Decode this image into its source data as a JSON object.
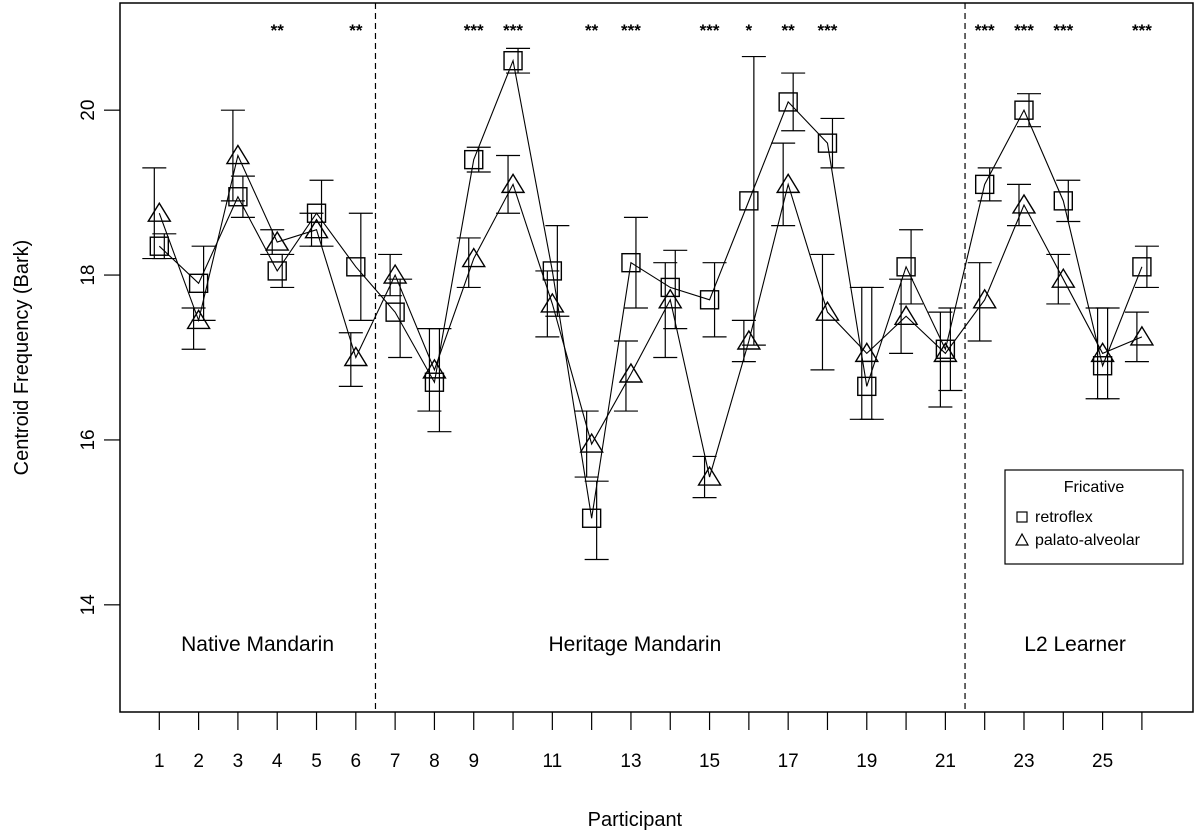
{
  "chart_data": {
    "type": "line",
    "xlabel": "Participant",
    "ylabel": "Centroid Frequency (Bark)",
    "xlim": [
      0,
      27.3
    ],
    "ylim": [
      12.7,
      21.3
    ],
    "x_ticks": [
      1,
      2,
      3,
      4,
      5,
      6,
      7,
      8,
      9,
      11,
      13,
      15,
      17,
      19,
      21,
      23,
      25
    ],
    "y_ticks": [
      14,
      16,
      18,
      20
    ],
    "x": [
      1,
      2,
      3,
      4,
      5,
      6,
      7,
      8,
      9,
      10,
      11,
      12,
      13,
      14,
      15,
      16,
      17,
      18,
      19,
      20,
      21,
      22,
      23,
      24,
      25,
      26
    ],
    "series": [
      {
        "name": "retroflex",
        "marker": "square",
        "values": [
          18.35,
          17.9,
          18.95,
          18.05,
          18.75,
          18.1,
          17.55,
          16.7,
          19.4,
          20.6,
          18.05,
          15.05,
          18.15,
          17.85,
          17.7,
          18.9,
          20.1,
          19.6,
          16.65,
          18.1,
          17.1,
          19.1,
          20.0,
          18.9,
          16.9,
          18.1
        ],
        "upper": [
          18.5,
          18.35,
          19.2,
          18.25,
          19.15,
          18.75,
          17.95,
          17.35,
          19.55,
          20.75,
          18.6,
          15.5,
          18.7,
          18.3,
          18.15,
          20.65,
          20.45,
          19.9,
          17.85,
          18.55,
          17.6,
          19.3,
          20.2,
          19.15,
          17.6,
          18.35
        ],
        "lower": [
          18.2,
          17.45,
          18.7,
          17.85,
          18.35,
          17.45,
          17.0,
          16.1,
          19.25,
          20.45,
          17.5,
          14.55,
          17.6,
          17.35,
          17.25,
          17.15,
          19.75,
          19.3,
          16.25,
          17.65,
          16.6,
          18.9,
          19.8,
          18.65,
          16.5,
          17.85
        ]
      },
      {
        "name": "palato-alveolar",
        "marker": "triangle",
        "values": [
          18.75,
          17.45,
          19.45,
          18.4,
          18.55,
          17.0,
          18.0,
          16.85,
          18.2,
          19.1,
          17.65,
          15.95,
          16.8,
          17.7,
          15.55,
          17.2,
          19.1,
          17.55,
          17.05,
          17.5,
          17.05,
          17.7,
          18.85,
          17.95,
          17.05,
          17.25
        ],
        "upper": [
          19.3,
          17.6,
          20.0,
          18.55,
          18.75,
          17.3,
          18.25,
          17.35,
          18.45,
          19.45,
          18.05,
          16.35,
          17.2,
          18.15,
          15.8,
          17.45,
          19.6,
          18.25,
          17.85,
          17.95,
          17.55,
          18.15,
          19.1,
          18.25,
          17.6,
          17.55
        ],
        "lower": [
          18.2,
          17.1,
          18.9,
          18.25,
          18.35,
          16.65,
          17.75,
          16.35,
          17.85,
          18.75,
          17.25,
          15.55,
          16.35,
          17.0,
          15.3,
          16.95,
          18.6,
          16.85,
          16.25,
          17.05,
          16.4,
          17.2,
          18.6,
          17.65,
          16.5,
          16.95
        ]
      }
    ],
    "significance": [
      {
        "x": 4,
        "label": "**"
      },
      {
        "x": 6,
        "label": "**"
      },
      {
        "x": 9,
        "label": "***"
      },
      {
        "x": 10,
        "label": "***"
      },
      {
        "x": 12,
        "label": "**"
      },
      {
        "x": 13,
        "label": "***"
      },
      {
        "x": 15,
        "label": "***"
      },
      {
        "x": 16,
        "label": "*"
      },
      {
        "x": 17,
        "label": "**"
      },
      {
        "x": 18,
        "label": "***"
      },
      {
        "x": 22,
        "label": "***"
      },
      {
        "x": 23,
        "label": "***"
      },
      {
        "x": 24,
        "label": "***"
      },
      {
        "x": 26,
        "label": "***"
      }
    ],
    "dividers": [
      6.5,
      21.5
    ],
    "groups": [
      {
        "label": "Native Mandarin",
        "x": 3.5
      },
      {
        "label": "Heritage Mandarin",
        "x": 13.1
      },
      {
        "label": "L2 Learner",
        "x": 24.3
      }
    ],
    "legend": {
      "title": "Fricative",
      "placement": "right",
      "entries": [
        {
          "label": "retroflex",
          "marker": "square"
        },
        {
          "label": "palato-alveolar",
          "marker": "triangle"
        }
      ]
    },
    "grid": false
  }
}
